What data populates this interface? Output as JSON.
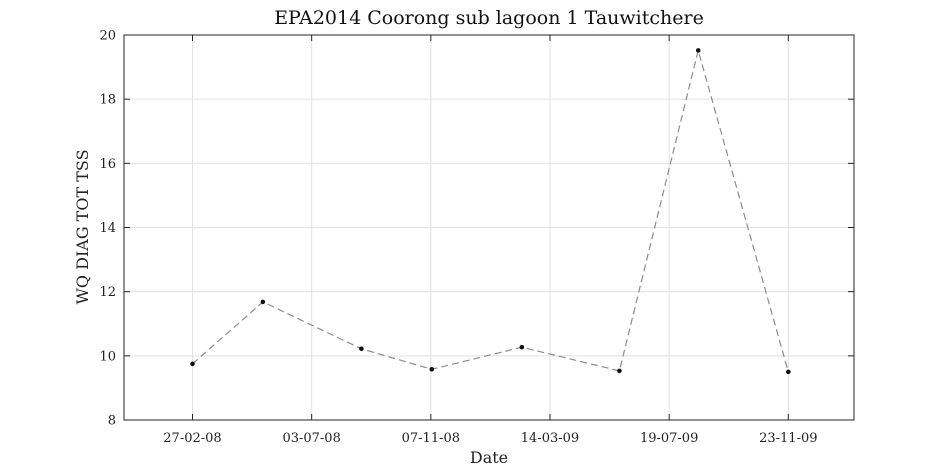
{
  "chart_data": {
    "type": "line",
    "title": "EPA2014 Coorong sub lagoon 1 Tauwitchere",
    "xlabel": "Date",
    "ylabel": "WQ DIAG TOT TSS",
    "x_axis_type": "date",
    "xlim": [
      "2007-12-16",
      "2010-02-01"
    ],
    "ylim": [
      8,
      20
    ],
    "x_ticks": [
      {
        "date": "2008-02-27",
        "label": "27-02-08"
      },
      {
        "date": "2008-07-03",
        "label": "03-07-08"
      },
      {
        "date": "2008-11-07",
        "label": "07-11-08"
      },
      {
        "date": "2009-03-14",
        "label": "14-03-09"
      },
      {
        "date": "2009-07-19",
        "label": "19-07-09"
      },
      {
        "date": "2009-11-23",
        "label": "23-11-09"
      }
    ],
    "y_ticks": [
      8,
      10,
      12,
      14,
      16,
      18,
      20
    ],
    "grid": true,
    "series": [
      {
        "line_style": "dashed",
        "line_color": "#8c8c8c",
        "marker_color": "#111111",
        "x": [
          "2008-02-27",
          "2008-05-12",
          "2008-08-25",
          "2008-11-08",
          "2009-02-12",
          "2009-05-27",
          "2009-08-19",
          "2009-11-23"
        ],
        "y": [
          9.75,
          11.68,
          10.22,
          9.58,
          10.27,
          9.53,
          19.52,
          9.5
        ]
      }
    ]
  }
}
